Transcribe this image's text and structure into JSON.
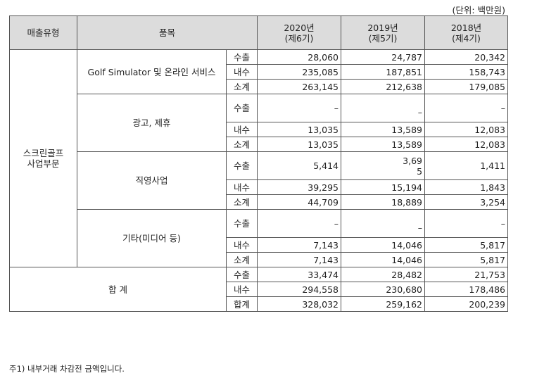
{
  "unit_note": "(단위: 백만원)",
  "headers": {
    "type": "매출유형",
    "item": "품목",
    "years": [
      {
        "year": "2020년",
        "term": "(제6기)"
      },
      {
        "year": "2019년",
        "term": "(제5기)"
      },
      {
        "year": "2018년",
        "term": "(제4기)"
      }
    ]
  },
  "segment": {
    "line1": "스크린골프",
    "line2": "사업부문"
  },
  "groups": [
    {
      "name": "Golf Simulator 및 온라인 서비스",
      "rows": [
        {
          "kind": "수출",
          "values": [
            "28,060",
            "24,787",
            "20,342"
          ]
        },
        {
          "kind": "내수",
          "values": [
            "235,085",
            "187,851",
            "158,743"
          ]
        },
        {
          "kind": "소계",
          "values": [
            "263,145",
            "212,638",
            "179,085"
          ]
        }
      ]
    },
    {
      "name": "광고, 제휴",
      "rows": [
        {
          "kind": "수출",
          "values": [
            "–",
            "–",
            "–"
          ]
        },
        {
          "kind": "내수",
          "values": [
            "13,035",
            "13,589",
            "12,083"
          ]
        },
        {
          "kind": "소계",
          "values": [
            "13,035",
            "13,589",
            "12,083"
          ]
        }
      ]
    },
    {
      "name": "직영사업",
      "rows": [
        {
          "kind": "수출",
          "values": [
            "5,414",
            "3,69",
            "1,411"
          ],
          "value2_cont": "5"
        },
        {
          "kind": "내수",
          "values": [
            "39,295",
            "15,194",
            "1,843"
          ]
        },
        {
          "kind": "소계",
          "values": [
            "44,709",
            "18,889",
            "3,254"
          ]
        }
      ]
    },
    {
      "name": "기타(미디어 등)",
      "rows": [
        {
          "kind": "수출",
          "values": [
            "–",
            "–",
            "–"
          ]
        },
        {
          "kind": "내수",
          "values": [
            "7,143",
            "14,046",
            "5,817"
          ]
        },
        {
          "kind": "소계",
          "values": [
            "7,143",
            "14,046",
            "5,817"
          ]
        }
      ]
    }
  ],
  "total": {
    "label": "합 계",
    "rows": [
      {
        "kind": "수출",
        "values": [
          "33,474",
          "28,482",
          "21,753"
        ]
      },
      {
        "kind": "내수",
        "values": [
          "294,558",
          "230,680",
          "178,486"
        ]
      },
      {
        "kind": "합계",
        "values": [
          "328,032",
          "259,162",
          "200,239"
        ]
      }
    ]
  },
  "footnote": "주1) 내부거래 차감전 금액입니다."
}
